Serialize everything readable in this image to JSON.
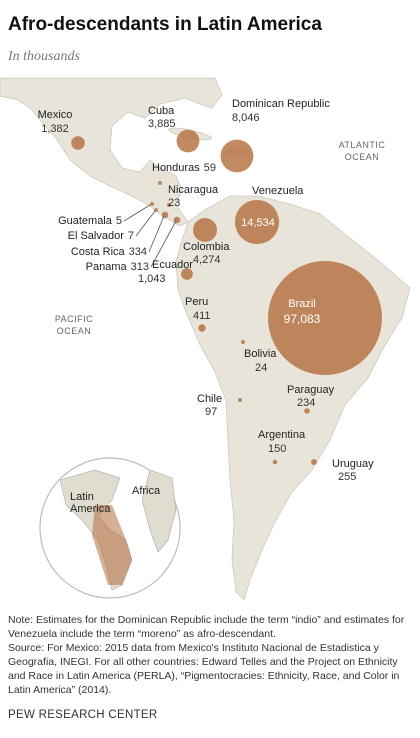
{
  "chart_data": {
    "type": "map",
    "title": "Afro-descendants in Latin America",
    "subtitle": "In thousands",
    "categories": [
      "Mexico",
      "Cuba",
      "Dominican Republic",
      "Honduras",
      "Guatemala",
      "El Salvador",
      "Nicaragua",
      "Costa Rica",
      "Panama",
      "Venezuela",
      "Colombia",
      "Ecuador",
      "Peru",
      "Brazil",
      "Bolivia",
      "Chile",
      "Paraguay",
      "Argentina",
      "Uruguay"
    ],
    "values": [
      1382,
      3885,
      8046,
      59,
      5,
      7,
      23,
      334,
      313,
      14534,
      4274,
      1043,
      411,
      97083,
      24,
      97,
      234,
      150,
      255
    ],
    "value_labels": [
      "1,382",
      "3,885",
      "8,046",
      "59",
      "5",
      "7",
      "23",
      "334",
      "313",
      "14,534",
      "4,274",
      "1,043",
      "411",
      "97,083",
      "24",
      "97",
      "234",
      "150",
      "255"
    ],
    "color": "#b5703f",
    "annotations": {
      "atlantic": [
        "ATLANTIC",
        "OCEAN"
      ],
      "pacific": [
        "PACIFIC",
        "OCEAN"
      ],
      "latin_america": [
        "Latin",
        "America"
      ],
      "africa": "Africa"
    },
    "note": "Note: Estimates for the Dominican Republic include the term “indio” and estimates for Venezuela include the term “moreno” as afro-descendant.",
    "source": "Source: For Mexico: 2015 data from Mexico's Instituto Nacional de Estadistica y Geografia, INEGI. For all other countries: Edward Telles and the Project on Ethnicity and Race in Latin America (PERLA), “Pigmentocracies: Ethnicity, Race, and Color in Latin America” (2014).",
    "credit": "PEW RESEARCH CENTER"
  }
}
